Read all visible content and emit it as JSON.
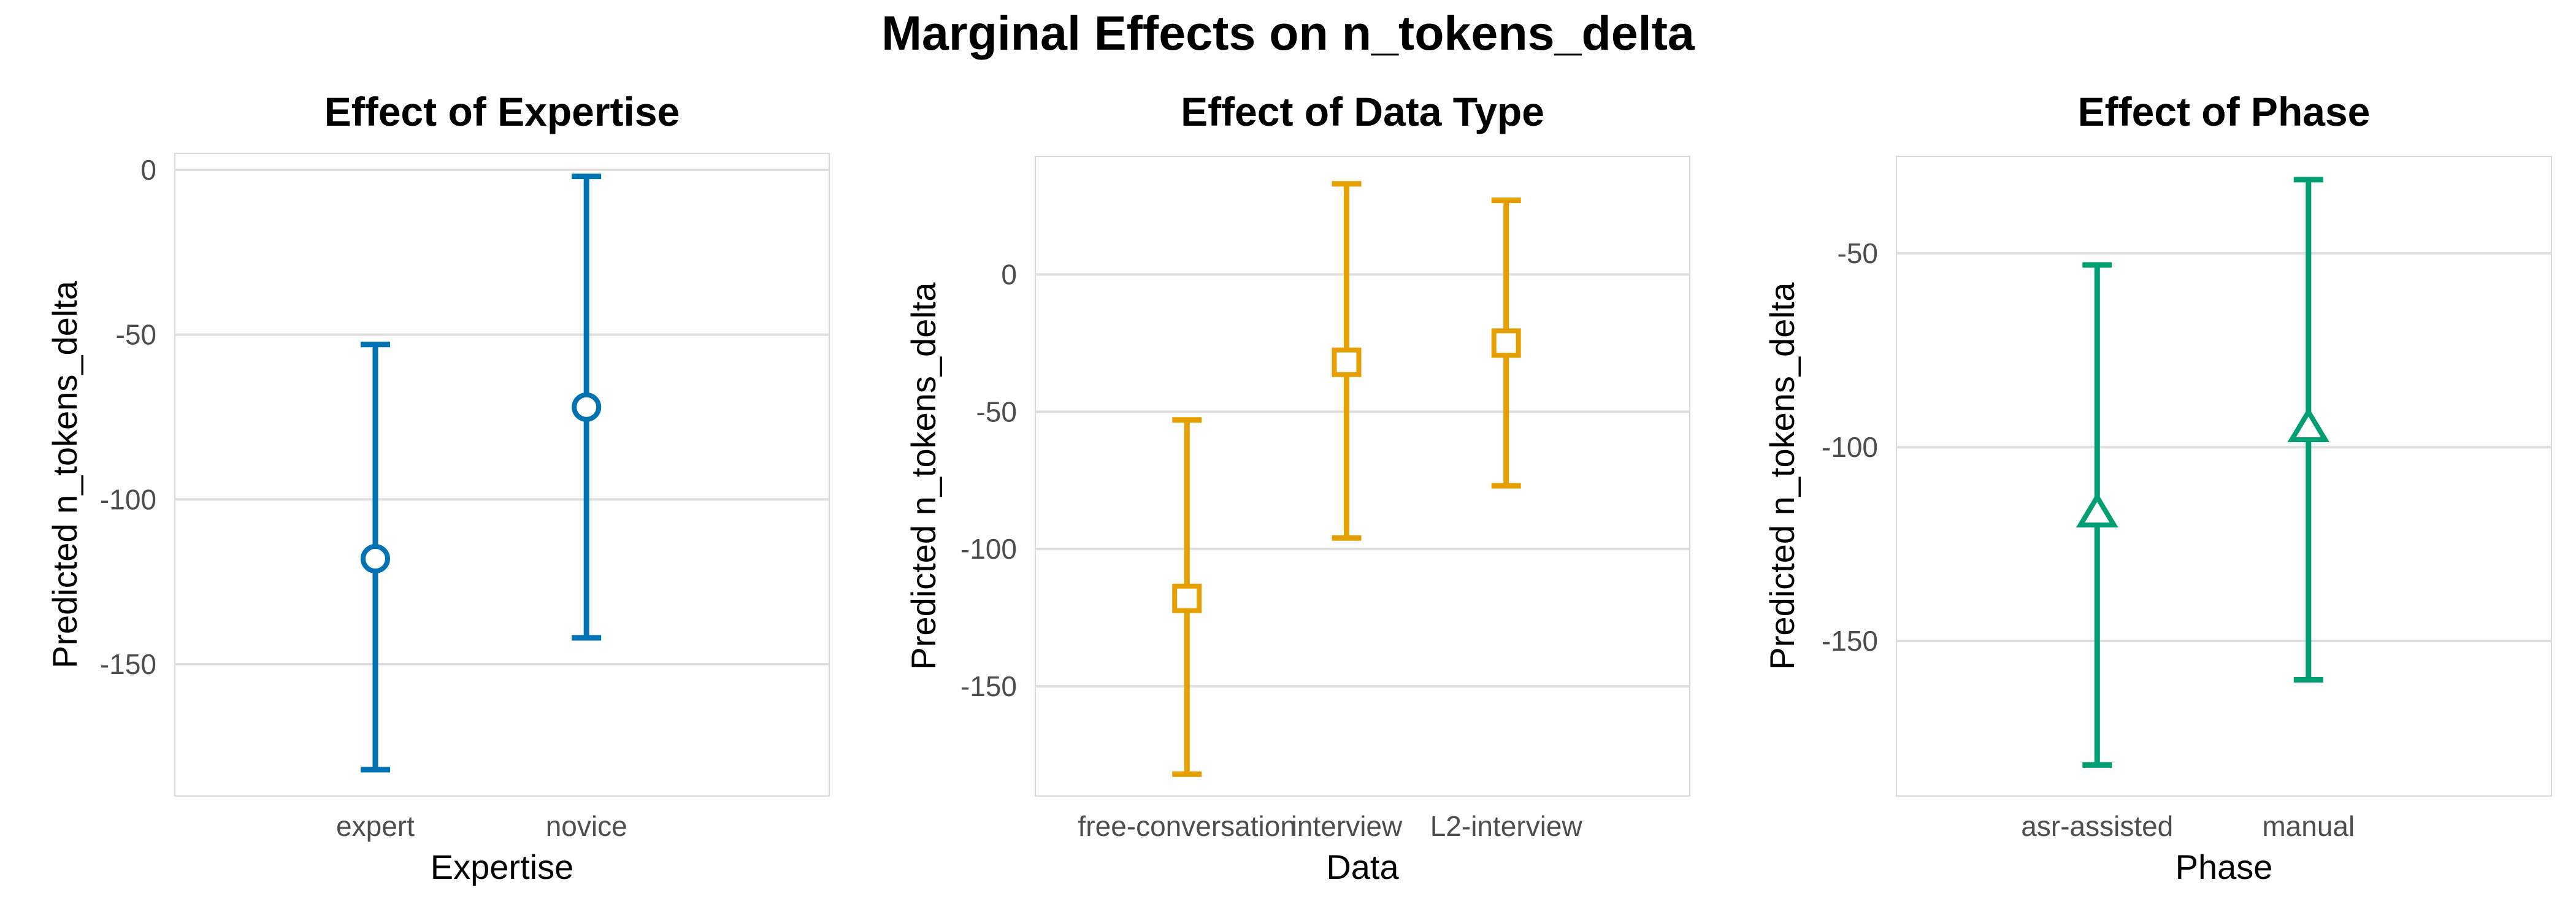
{
  "title": "Marginal Effects on n_tokens_delta",
  "chart_data": [
    {
      "type": "errorbar",
      "title": "Effect of Expertise",
      "xlabel": "Expertise",
      "ylabel": "Predicted n_tokens_delta",
      "categories": [
        "expert",
        "novice"
      ],
      "series": [
        {
          "values": [
            -118,
            -72
          ],
          "lower": [
            -182,
            -142
          ],
          "upper": [
            -53,
            -2
          ],
          "color": "#0072B2",
          "marker": "circle"
        }
      ],
      "ylim": [
        -190,
        5
      ],
      "yticks": [
        0,
        -50,
        -100,
        -150
      ],
      "ytick_labels": [
        "0",
        "-50",
        "-100",
        "-150"
      ],
      "grid": true
    },
    {
      "type": "errorbar",
      "title": "Effect of Data Type",
      "xlabel": "Data",
      "ylabel": "Predicted n_tokens_delta",
      "categories": [
        "free-conversation",
        "interview",
        "L2-interview"
      ],
      "series": [
        {
          "values": [
            -118,
            -32,
            -25
          ],
          "lower": [
            -182,
            -96,
            -77
          ],
          "upper": [
            -53,
            33,
            27
          ],
          "color": "#E69F00",
          "marker": "square"
        }
      ],
      "ylim": [
        -190,
        43
      ],
      "yticks": [
        0,
        -50,
        -100,
        -150
      ],
      "ytick_labels": [
        "0",
        "-50",
        "-100",
        "-150"
      ],
      "grid": true
    },
    {
      "type": "errorbar",
      "title": "Effect of Phase",
      "xlabel": "Phase",
      "ylabel": "Predicted n_tokens_delta",
      "categories": [
        "asr-assisted",
        "manual"
      ],
      "series": [
        {
          "values": [
            -117,
            -95
          ],
          "lower": [
            -182,
            -160
          ],
          "upper": [
            -53,
            -31
          ],
          "color": "#009E73",
          "marker": "triangle"
        }
      ],
      "ylim": [
        -190,
        -25
      ],
      "yticks": [
        -50,
        -100,
        -150
      ],
      "ytick_labels": [
        "-50",
        "-100",
        "-150"
      ],
      "grid": true
    }
  ]
}
